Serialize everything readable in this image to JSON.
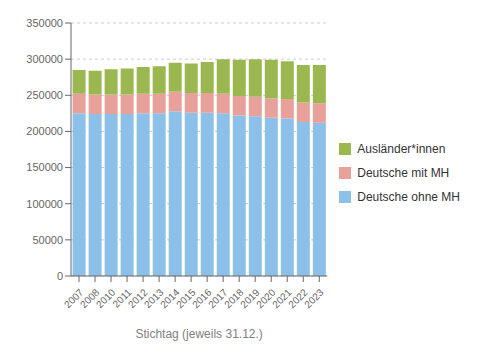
{
  "chart_data": {
    "type": "bar",
    "stacked": true,
    "x_label": "Stichtag (jeweils 31.12.)",
    "categories": [
      "2007",
      "2008",
      "2010",
      "2011",
      "2012",
      "2013",
      "2014",
      "2015",
      "2016",
      "2017",
      "2018",
      "2019",
      "2020",
      "2021",
      "2022",
      "2023"
    ],
    "series": [
      {
        "name": "Deutsche ohne MH",
        "color": "#8DC0E8",
        "values": [
          225000,
          224000,
          224000,
          224000,
          225000,
          225000,
          228000,
          226000,
          226000,
          225000,
          222000,
          221000,
          219000,
          218000,
          213000,
          212000
        ]
      },
      {
        "name": "Deutsche mit MH",
        "color": "#E8A09A",
        "values": [
          27000,
          27000,
          27000,
          27000,
          27000,
          27000,
          27000,
          27000,
          27000,
          27000,
          27000,
          27000,
          27000,
          27000,
          27000,
          27000
        ]
      },
      {
        "name": "Ausländer*innen",
        "color": "#9BB850",
        "values": [
          33000,
          33000,
          35000,
          36000,
          37000,
          38000,
          40000,
          41000,
          43000,
          48000,
          50000,
          52000,
          53000,
          52000,
          52000,
          53000
        ]
      }
    ],
    "ylim": [
      0,
      350000
    ],
    "yticks": [
      0,
      50000,
      100000,
      150000,
      200000,
      250000,
      300000,
      350000
    ],
    "grid": true,
    "legend": "right"
  }
}
